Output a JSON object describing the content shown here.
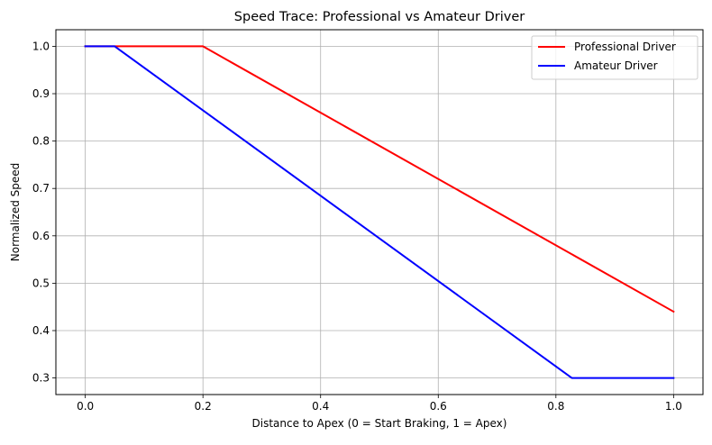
{
  "chart_data": {
    "type": "line",
    "title": "Speed Trace: Professional vs Amateur Driver",
    "xlabel": "Distance to Apex (0 = Start Braking, 1 = Apex)",
    "ylabel": "Normalized Speed",
    "xlim": [
      -0.05,
      1.05
    ],
    "ylim": [
      0.265,
      1.035
    ],
    "xticks": [
      0.0,
      0.2,
      0.4,
      0.6,
      0.8,
      1.0
    ],
    "xtick_labels": [
      "0.0",
      "0.2",
      "0.4",
      "0.6",
      "0.8",
      "1.0"
    ],
    "yticks": [
      0.3,
      0.4,
      0.5,
      0.6,
      0.7,
      0.8,
      0.9,
      1.0
    ],
    "ytick_labels": [
      "0.3",
      "0.4",
      "0.5",
      "0.6",
      "0.7",
      "0.8",
      "0.9",
      "1.0"
    ],
    "grid": true,
    "legend_position": "top-right",
    "series": [
      {
        "name": "Professional Driver",
        "color": "#ff0000",
        "x": [
          0.0,
          0.2,
          1.0
        ],
        "y": [
          1.0,
          1.0,
          0.44
        ]
      },
      {
        "name": "Amateur Driver",
        "color": "#0000ff",
        "x": [
          0.0,
          0.05,
          0.827,
          1.0
        ],
        "y": [
          1.0,
          1.0,
          0.3,
          0.3
        ]
      }
    ]
  }
}
